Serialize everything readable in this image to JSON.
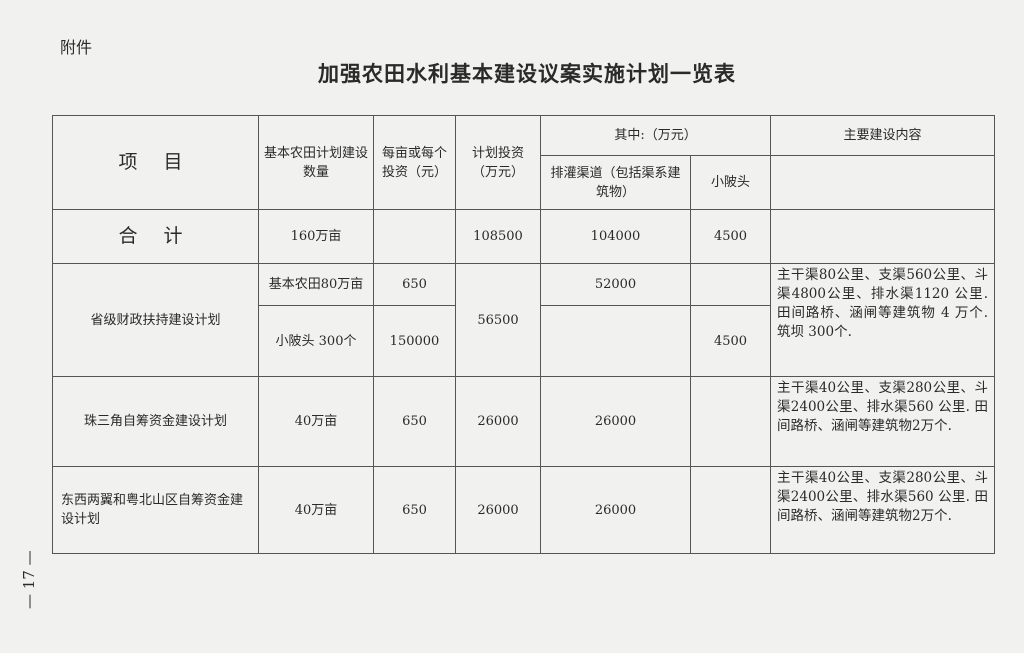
{
  "attachment": "附件",
  "title": "加强农田水利基本建设议案实施计划一览表",
  "page_number": "— 17 —",
  "headers": {
    "item": "项 目",
    "quantity": "基本农田计划建设数量",
    "per_unit": "每亩或每个投资（元）",
    "investment": "计划投资（万元）",
    "of_which": "其中:（万元）",
    "channels": "排灌渠道（包括渠系建筑物）",
    "small_dams": "小陂头",
    "content": "主要建设内容"
  },
  "rows": {
    "total": {
      "item": "合 计",
      "quantity": "160万亩",
      "investment": "108500",
      "channels": "104000",
      "small_dams": "4500"
    },
    "provincial": {
      "item": "省级财政扶持建设计划",
      "quantity_a": "基本农田80万亩",
      "per_unit_a": "650",
      "quantity_b": "小陂头 300个",
      "per_unit_b": "150000",
      "investment": "56500",
      "channels": "52000",
      "small_dams": "4500",
      "content": "主干渠80公里、支渠560公里、斗渠4800公里、排水渠1120 公里. 田间路桥、涵闸等建筑物 4 万个. 筑坝 300个."
    },
    "prd": {
      "item": "珠三角自筹资金建设计划",
      "quantity": "40万亩",
      "per_unit": "650",
      "investment": "26000",
      "channels": "26000",
      "content": "主干渠40公里、支渠280公里、斗渠2400公里、排水渠560 公里. 田间路桥、涵闸等建筑物2万个."
    },
    "east_west": {
      "item": "东西两翼和粤北山区自筹资金建设计划",
      "quantity": "40万亩",
      "per_unit": "650",
      "investment": "26000",
      "channels": "26000",
      "content": "主干渠40公里、支渠280公里、斗渠2400公里、排水渠560 公里. 田间路桥、涵闸等建筑物2万个."
    }
  }
}
